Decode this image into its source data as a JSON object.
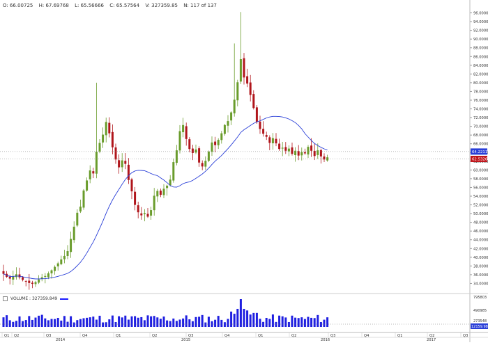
{
  "header": {
    "open": "O: 66.00725",
    "high": "H: 67.69768",
    "low": "L: 65.56666",
    "close": "C: 65.57564",
    "volume": "V: 327359.85",
    "bar_index": "N: 117 of 137"
  },
  "price_tags": {
    "ma_value": "64.22119",
    "last_value": "62.53269"
  },
  "volume_panel": {
    "legend_label": "VOLUME : 327359.849",
    "tags": [
      "795803",
      "490985",
      "273548",
      "12159.988"
    ],
    "tag_highlight": "12159.988"
  },
  "x_axis": {
    "quarters": [
      "Q1",
      "Q2",
      "Q3",
      "Q4",
      "Q1",
      "Q2",
      "Q3",
      "Q4",
      "Q1",
      "Q2",
      "Q3",
      "Q4",
      "Q1",
      "Q2",
      "Q3"
    ],
    "years": [
      "2014",
      "2015",
      "2016",
      "2017"
    ]
  },
  "colors": {
    "up": "#6a9c2c",
    "down": "#b0151b",
    "ma": "#2a3fd8",
    "volume": "#1f1fe0",
    "last_tag": "#c0151b",
    "ma_tag": "#2a3fd8"
  },
  "chart_data": {
    "type": "candlestick",
    "ylim": [
      32,
      98
    ],
    "yticks": [
      "34.0000",
      "36.0000",
      "38.0000",
      "40.0000",
      "42.0000",
      "44.0000",
      "46.0000",
      "48.0000",
      "50.0000",
      "52.0000",
      "54.0000",
      "56.0000",
      "58.0000",
      "60.0000",
      "62.0000",
      "64.0000",
      "66.0000",
      "68.0000",
      "70.0000",
      "72.0000",
      "74.0000",
      "76.0000",
      "78.0000",
      "80.0000",
      "82.0000",
      "84.0000",
      "86.0000",
      "88.0000",
      "90.0000",
      "92.0000",
      "94.0000",
      "96.0000"
    ],
    "close": [
      36.2,
      35.5,
      35.1,
      35.6,
      36.1,
      35.4,
      34.8,
      34.4,
      34.1,
      33.9,
      34.3,
      34.9,
      35.4,
      35.7,
      36.3,
      37.0,
      37.8,
      38.6,
      39.5,
      40.3,
      41.4,
      44.2,
      47.0,
      50.2,
      51.6,
      55.3,
      57.6,
      59.9,
      59.2,
      64.2,
      66.2,
      68.1,
      71.0,
      68.4,
      65.2,
      62.4,
      60.6,
      62.2,
      61.4,
      57.7,
      55.1,
      52.0,
      50.3,
      49.6,
      50.1,
      49.3,
      50.8,
      54.1,
      55.2,
      54.3,
      55.7,
      56.4,
      57.8,
      61.8,
      64.5,
      68.9,
      70.3,
      67.1,
      64.8,
      63.9,
      64.7,
      61.7,
      60.8,
      62.1,
      64.2,
      66.3,
      65.7,
      66.9,
      68.4,
      70.3,
      71.2,
      73.2,
      76.1,
      80.1,
      85.4,
      81.2,
      79.8,
      77.2,
      74.2,
      71.0,
      69.4,
      68.3,
      67.6,
      66.2,
      67.3,
      66.1,
      64.8,
      65.1,
      64.4,
      64.9,
      63.7,
      64.4,
      63.3,
      64.1,
      63.8,
      65.3,
      64.4,
      63.2,
      64.5,
      63.1,
      62.4,
      62.9
    ],
    "moving_average": "blue line (approx. 20-period)"
  }
}
